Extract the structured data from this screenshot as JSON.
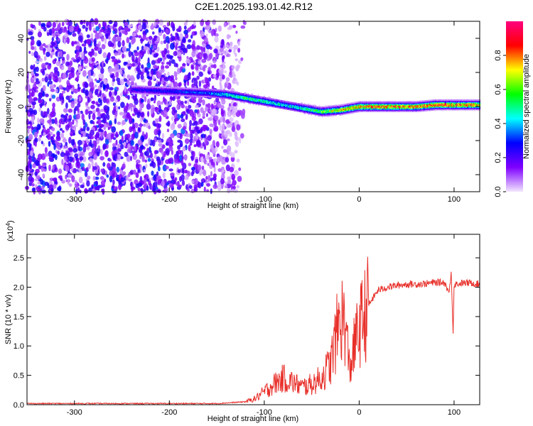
{
  "title": "C2E1.2025.193.01.42.R12",
  "chart_data": [
    {
      "type": "heatmap",
      "title": "C2E1.2025.193.01.42.R12",
      "xlabel": "Height of straight line (km)",
      "ylabel": "Frequency (Hz)",
      "xlim": [
        -350,
        127
      ],
      "ylim": [
        -50,
        50
      ],
      "x_ticks": [
        -300,
        -200,
        -100,
        0,
        100
      ],
      "x_tick_labels": [
        "-300",
        "-200",
        "-100",
        "0",
        "100"
      ],
      "y_ticks": [
        -40,
        -20,
        0,
        20,
        40
      ],
      "y_tick_labels": [
        "-40",
        "-20",
        "0",
        "20",
        "40"
      ],
      "colorbar": {
        "label": "Normalized spectral amplitude",
        "range": [
          0,
          1
        ],
        "ticks": [
          0.0,
          0.2,
          0.4,
          0.6,
          0.8
        ],
        "tick_labels": [
          "0.0",
          "0.2",
          "0.4",
          "0.6",
          "0.8"
        ],
        "colors": [
          "#f2e6ff",
          "#8000ff",
          "#0000ff",
          "#00ffff",
          "#00ff00",
          "#ffff00",
          "#ff0000",
          "#ff0080"
        ]
      },
      "ridge": {
        "x": [
          -240,
          -200,
          -160,
          -140,
          -120,
          -100,
          -80,
          -60,
          -40,
          -20,
          0,
          20,
          40,
          60,
          80,
          100,
          127
        ],
        "y": [
          10,
          9,
          8,
          7,
          5,
          3,
          1,
          -1,
          -3,
          -2,
          0,
          0,
          0,
          0,
          1,
          1,
          1
        ],
        "amplitude": [
          0.25,
          0.3,
          0.35,
          0.45,
          0.55,
          0.5,
          0.45,
          0.5,
          0.6,
          0.75,
          0.85,
          0.85,
          0.85,
          0.85,
          0.9,
          0.85,
          0.8
        ]
      },
      "noise_region": {
        "x": [
          -350,
          -140
        ],
        "amplitude": [
          0.0,
          0.3
        ]
      }
    },
    {
      "type": "line",
      "xlabel": "Height of straight line (km)",
      "ylabel": "SNR (10 * v/v)",
      "y_multiplier": "(x10",
      "y_multiplier_exp": "4",
      "xlim": [
        -350,
        127
      ],
      "ylim": [
        0,
        2.9
      ],
      "x_ticks": [
        -300,
        -200,
        -100,
        0,
        100
      ],
      "x_tick_labels": [
        "-300",
        "-200",
        "-100",
        "0",
        "100"
      ],
      "y_ticks": [
        0.0,
        0.5,
        1.0,
        1.5,
        2.0,
        2.5
      ],
      "y_tick_labels": [
        "0.0",
        "0.5",
        "1.0",
        "1.5",
        "2.0",
        "2.5"
      ],
      "series": [
        {
          "color": "#e8302a",
          "x": [
            -350,
            -250,
            -150,
            -120,
            -110,
            -100,
            -90,
            -80,
            -70,
            -60,
            -50,
            -40,
            -30,
            -25,
            -20,
            -15,
            -10,
            -5,
            0,
            10,
            20,
            30,
            40,
            50,
            60,
            70,
            80,
            90,
            95,
            97,
            99,
            100,
            110,
            120,
            127
          ],
          "y": [
            0.02,
            0.02,
            0.02,
            0.05,
            0.1,
            0.22,
            0.35,
            0.45,
            0.38,
            0.3,
            0.35,
            0.45,
            0.7,
            1.1,
            1.5,
            1.4,
            0.6,
            1.0,
            1.3,
            1.7,
            1.95,
            2.0,
            2.03,
            2.05,
            2.05,
            2.06,
            2.08,
            2.08,
            1.9,
            2.3,
            1.2,
            2.05,
            2.07,
            2.07,
            2.05
          ]
        }
      ]
    }
  ]
}
